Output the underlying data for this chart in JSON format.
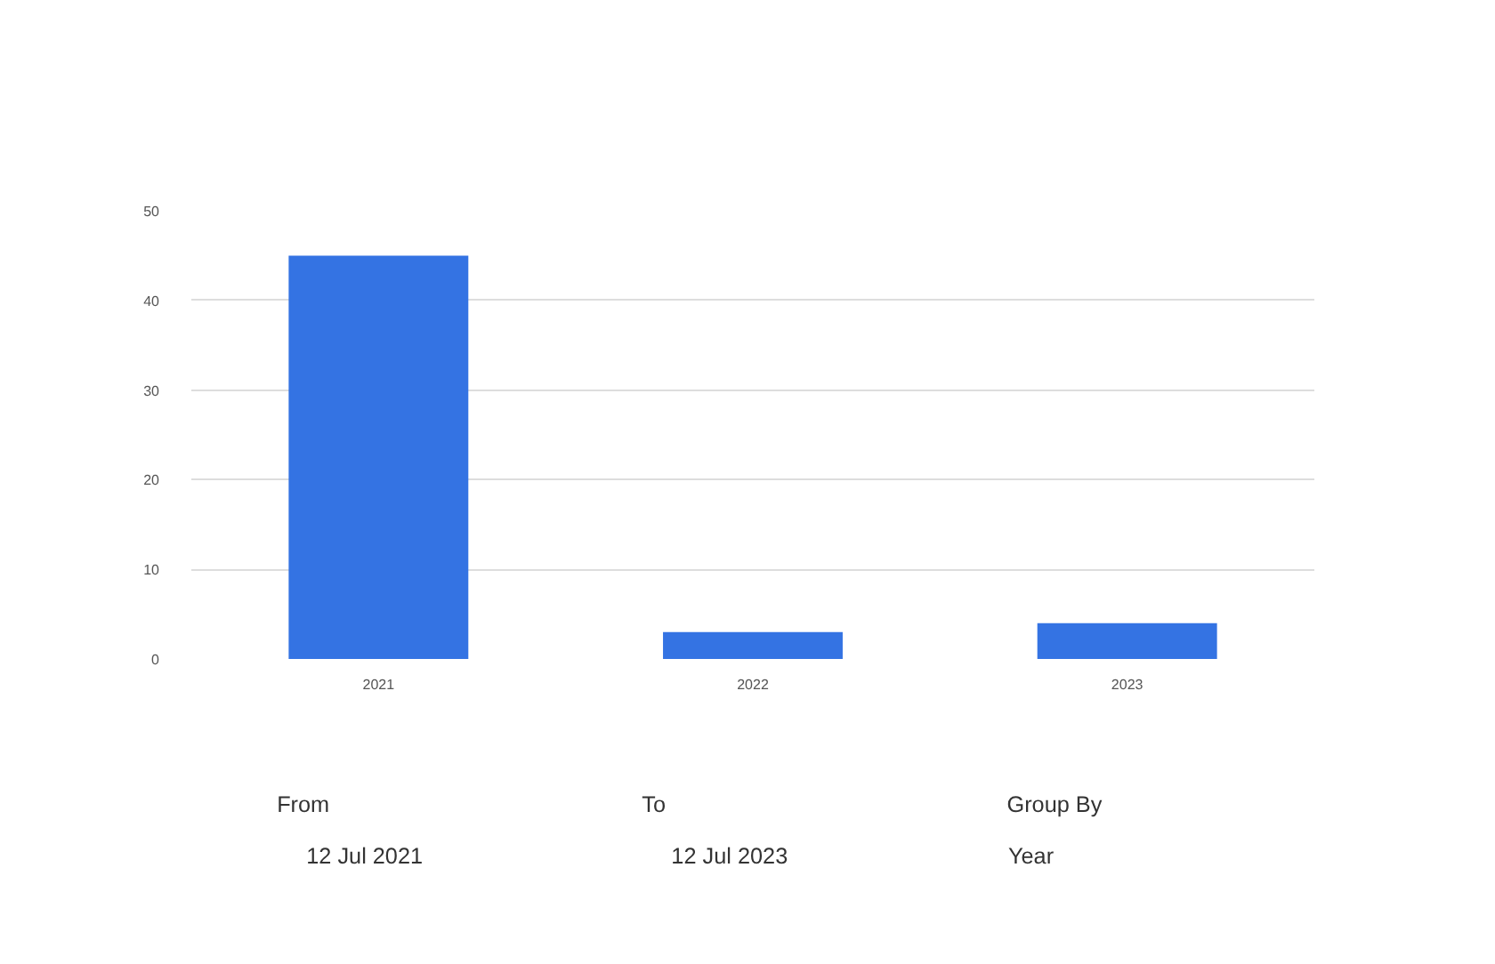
{
  "chart_data": {
    "type": "bar",
    "categories": [
      "2021",
      "2022",
      "2023"
    ],
    "values": [
      45,
      3,
      4
    ],
    "color": "#3473e3",
    "ylim": [
      0,
      50
    ],
    "yticks": [
      0,
      10,
      20,
      30,
      40,
      50
    ],
    "grid": "y",
    "annotations": [
      "From",
      "12 Jul 2021",
      "To",
      "12 Jul 2023",
      "Group By",
      "Year"
    ]
  }
}
